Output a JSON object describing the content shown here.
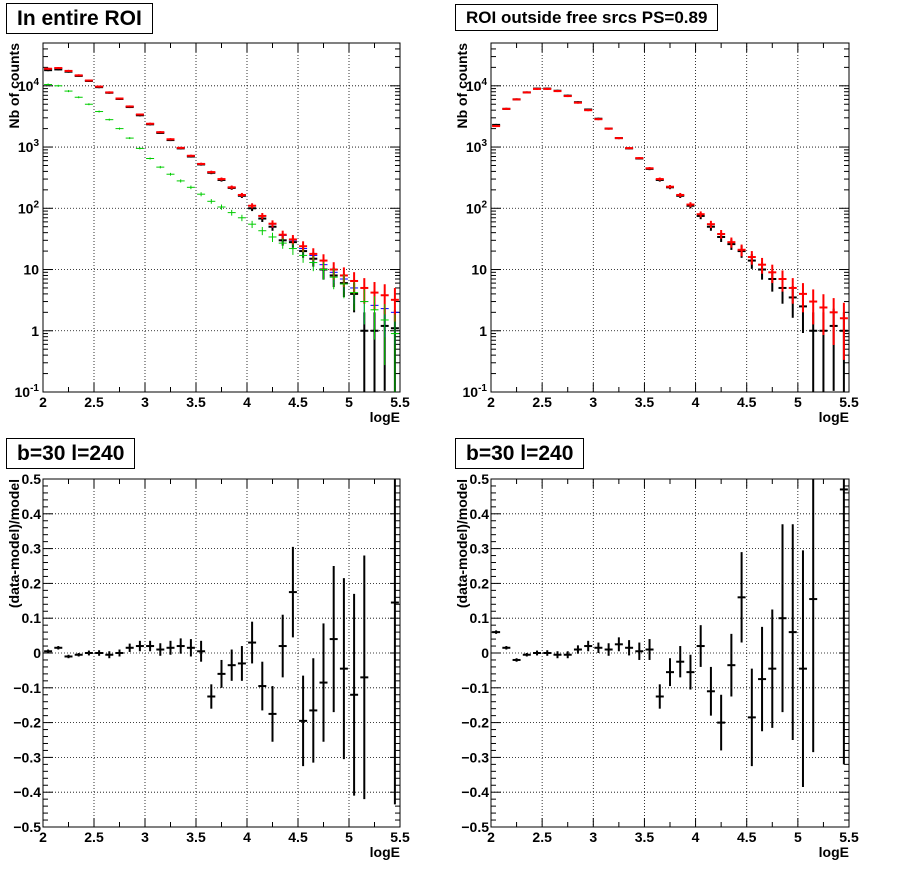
{
  "chart_data": [
    {
      "type": "scatter",
      "title": "In entire ROI",
      "xlabel": "logE",
      "ylabel": "Nb of counts",
      "xlim": [
        2,
        5.5
      ],
      "ylim": [
        0.1,
        50000
      ],
      "yscale": "log",
      "grid": true,
      "x_ticks": [
        "2",
        "2.5",
        "3",
        "3.5",
        "4",
        "4.5",
        "5",
        "5.5"
      ],
      "y_ticks": [
        "10^{-1}",
        "1",
        "10",
        "10^{2}",
        "10^{3}",
        "10^{4}"
      ],
      "x": [
        2.05,
        2.15,
        2.25,
        2.35,
        2.45,
        2.55,
        2.65,
        2.75,
        2.85,
        2.95,
        3.05,
        3.15,
        3.25,
        3.35,
        3.45,
        3.55,
        3.65,
        3.75,
        3.85,
        3.95,
        4.05,
        4.15,
        4.25,
        4.35,
        4.45,
        4.55,
        4.65,
        4.75,
        4.85,
        4.95,
        5.05,
        5.15,
        5.25,
        5.35,
        5.45
      ],
      "series": [
        {
          "color": "#000000",
          "values": [
            18000,
            18500,
            17000,
            14500,
            12000,
            9500,
            7700,
            6100,
            4500,
            3300,
            2350,
            1700,
            1300,
            950,
            700,
            520,
            380,
            290,
            215,
            160,
            100,
            68,
            50,
            30,
            28,
            20,
            15,
            10,
            8,
            6,
            4,
            1,
            1,
            1.2,
            1.1
          ]
        },
        {
          "color": "#0000ff",
          "values": [
            19000,
            19500,
            17500,
            14800,
            12200,
            9700,
            7800,
            6200,
            4600,
            3400,
            2400,
            1750,
            1340,
            970,
            720,
            530,
            390,
            300,
            220,
            165,
            110,
            75,
            55,
            36,
            30,
            22,
            17,
            12,
            9,
            7,
            5,
            3,
            2.6,
            2.3,
            2
          ]
        },
        {
          "color": "#ff0000",
          "values": [
            19000,
            19500,
            17500,
            14800,
            12200,
            9700,
            7800,
            6200,
            4600,
            3400,
            2400,
            1750,
            1340,
            970,
            720,
            530,
            390,
            300,
            220,
            165,
            110,
            75,
            56,
            37,
            31,
            24,
            18,
            14,
            10,
            8,
            6.5,
            5,
            4.2,
            3.8,
            3.2
          ]
        },
        {
          "color": "#00cc00",
          "values": [
            10500,
            10000,
            8200,
            6500,
            5000,
            3800,
            2800,
            2000,
            1400,
            950,
            650,
            470,
            360,
            280,
            220,
            170,
            130,
            105,
            85,
            70,
            55,
            43,
            34,
            27,
            22,
            17,
            13,
            10,
            7.5,
            5.8,
            4.2,
            3,
            2.2,
            1.5,
            0.9
          ]
        }
      ]
    },
    {
      "type": "scatter",
      "title": "ROI outside free srcs PS=0.89",
      "xlabel": "logE",
      "ylabel": "Nb of counts",
      "xlim": [
        2,
        5.5
      ],
      "ylim": [
        0.1,
        50000
      ],
      "yscale": "log",
      "grid": true,
      "x_ticks": [
        "2",
        "2.5",
        "3",
        "3.5",
        "4",
        "4.5",
        "5",
        "5.5"
      ],
      "y_ticks": [
        "10^{-1}",
        "1",
        "10",
        "10^{2}",
        "10^{3}",
        "10^{4}"
      ],
      "x": [
        2.05,
        2.15,
        2.25,
        2.35,
        2.45,
        2.55,
        2.65,
        2.75,
        2.85,
        2.95,
        3.05,
        3.15,
        3.25,
        3.35,
        3.45,
        3.55,
        3.65,
        3.75,
        3.85,
        3.95,
        4.05,
        4.15,
        4.25,
        4.35,
        4.45,
        4.55,
        4.65,
        4.75,
        4.85,
        4.95,
        5.05,
        5.15,
        5.25,
        5.35,
        5.45
      ],
      "series": [
        {
          "color": "#000000",
          "values": [
            2300,
            4200,
            6000,
            7800,
            9000,
            9000,
            8300,
            6900,
            5400,
            4100,
            2900,
            2000,
            1400,
            950,
            650,
            440,
            290,
            220,
            160,
            110,
            75,
            50,
            34,
            26,
            20,
            14,
            10,
            7,
            5,
            3.5,
            2.5,
            1,
            1,
            1.2,
            1
          ]
        },
        {
          "color": "#ff0000",
          "values": [
            2200,
            4200,
            6000,
            7800,
            8900,
            8900,
            8200,
            6800,
            5300,
            4000,
            2850,
            2000,
            1400,
            960,
            660,
            450,
            300,
            225,
            165,
            115,
            80,
            55,
            38,
            28,
            21,
            16,
            12,
            9,
            7,
            5,
            4,
            3,
            2.4,
            2,
            1.6
          ]
        }
      ]
    },
    {
      "type": "scatter",
      "title": "b=30 l=240",
      "xlabel": "logE",
      "ylabel": "(data-model)/model",
      "xlim": [
        2,
        5.5
      ],
      "ylim": [
        -0.5,
        0.5
      ],
      "grid": true,
      "x_ticks": [
        "2",
        "2.5",
        "3",
        "3.5",
        "4",
        "4.5",
        "5",
        "5.5"
      ],
      "y_ticks": [
        "−0.5",
        "−0.4",
        "−0.3",
        "−0.2",
        "−0.1",
        "0",
        "0.1",
        "0.2",
        "0.3",
        "0.4",
        "0.5"
      ],
      "x": [
        2.05,
        2.15,
        2.25,
        2.35,
        2.45,
        2.55,
        2.65,
        2.75,
        2.85,
        2.95,
        3.05,
        3.15,
        3.25,
        3.35,
        3.45,
        3.55,
        3.65,
        3.75,
        3.85,
        3.95,
        4.05,
        4.15,
        4.25,
        4.35,
        4.45,
        4.55,
        4.65,
        4.75,
        4.85,
        4.95,
        5.05,
        5.15,
        5.45
      ],
      "y": [
        0.005,
        0.015,
        -0.01,
        -0.005,
        0,
        0,
        -0.005,
        0,
        0.015,
        0.02,
        0.02,
        0.01,
        0.015,
        0.02,
        0.015,
        0.005,
        -0.125,
        -0.06,
        -0.035,
        -0.03,
        0.03,
        -0.095,
        -0.175,
        0.02,
        0.175,
        -0.195,
        -0.165,
        -0.085,
        0.04,
        -0.045,
        -0.12,
        -0.07,
        0.145
      ],
      "yerr": [
        0.005,
        0.005,
        0.005,
        0.005,
        0.007,
        0.008,
        0.01,
        0.01,
        0.012,
        0.015,
        0.015,
        0.018,
        0.02,
        0.022,
        0.025,
        0.03,
        0.035,
        0.04,
        0.045,
        0.05,
        0.06,
        0.07,
        0.08,
        0.09,
        0.13,
        0.13,
        0.15,
        0.17,
        0.21,
        0.26,
        0.29,
        0.35,
        0.58
      ]
    },
    {
      "type": "scatter",
      "title": "b=30 l=240",
      "xlabel": "logE",
      "ylabel": "(data-model)/model",
      "xlim": [
        2,
        5.5
      ],
      "ylim": [
        -0.5,
        0.5
      ],
      "grid": true,
      "x_ticks": [
        "2",
        "2.5",
        "3",
        "3.5",
        "4",
        "4.5",
        "5",
        "5.5"
      ],
      "y_ticks": [
        "−0.5",
        "−0.4",
        "−0.3",
        "−0.2",
        "−0.1",
        "0",
        "0.1",
        "0.2",
        "0.3",
        "0.4",
        "0.5"
      ],
      "x": [
        2.05,
        2.15,
        2.25,
        2.35,
        2.45,
        2.55,
        2.65,
        2.75,
        2.85,
        2.95,
        3.05,
        3.15,
        3.25,
        3.35,
        3.45,
        3.55,
        3.65,
        3.75,
        3.85,
        3.95,
        4.05,
        4.15,
        4.25,
        4.35,
        4.45,
        4.55,
        4.65,
        4.75,
        4.85,
        4.95,
        5.05,
        5.15,
        5.45
      ],
      "y": [
        0.06,
        0.015,
        -0.02,
        -0.005,
        0,
        0,
        -0.005,
        -0.005,
        0.01,
        0.02,
        0.015,
        0.01,
        0.025,
        0.015,
        0.005,
        0.01,
        -0.125,
        -0.055,
        -0.025,
        -0.055,
        0.02,
        -0.11,
        -0.2,
        -0.035,
        0.16,
        -0.185,
        -0.075,
        -0.045,
        0.1,
        0.06,
        -0.045,
        0.155,
        0.47
      ]
    }
  ]
}
